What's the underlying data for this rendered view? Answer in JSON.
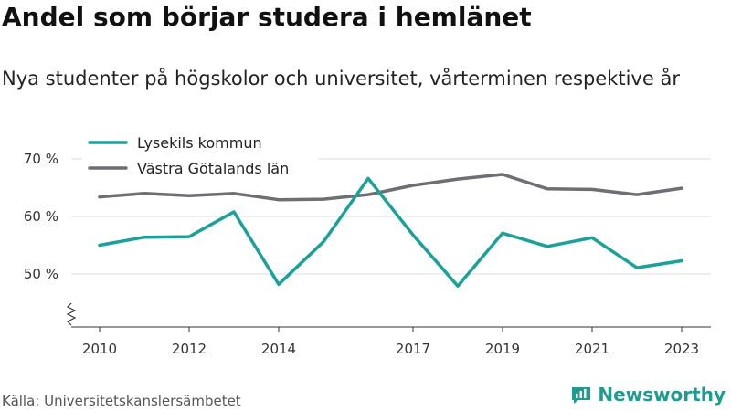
{
  "title": "Andel som börjar studera i hemlänet",
  "subtitle": "Nya studenter på högskolor och universitet, vårterminen respektive år",
  "source": "Källa: Universitetskanslersämbetet",
  "brand": {
    "name": "Newsworthy",
    "icon": "newsworthy-logo-icon",
    "color": "#1f9b91"
  },
  "chart_data": {
    "type": "line",
    "title": "Andel som börjar studera i hemlänet",
    "subtitle": "Nya studenter på högskolor och universitet, vårterminen respektive år",
    "x": [
      2010,
      2011,
      2012,
      2013,
      2014,
      2015,
      2016,
      2017,
      2018,
      2019,
      2020,
      2021,
      2022,
      2023
    ],
    "x_tick_labels": [
      "2010",
      "2012",
      "2014",
      "2017",
      "2019",
      "2021",
      "2023"
    ],
    "y_ticks": [
      50,
      60,
      70
    ],
    "y_tick_labels": [
      "50 %",
      "60 %",
      "70 %"
    ],
    "ylim": [
      42,
      73
    ],
    "axis_break": true,
    "grid": "horizontal",
    "legend_position": "top-left",
    "series": [
      {
        "name": "Lysekils kommun",
        "color": "#1aa19a",
        "values": [
          55.0,
          56.4,
          56.5,
          60.8,
          48.2,
          55.6,
          66.6,
          56.8,
          47.9,
          57.1,
          54.8,
          56.3,
          51.1,
          52.3
        ]
      },
      {
        "name": "Västra Götalands län",
        "color": "#6e6e73",
        "values": [
          63.4,
          64.0,
          63.6,
          64.0,
          62.9,
          63.0,
          63.8,
          65.4,
          66.5,
          67.3,
          64.8,
          64.7,
          63.8,
          64.9
        ]
      }
    ]
  }
}
